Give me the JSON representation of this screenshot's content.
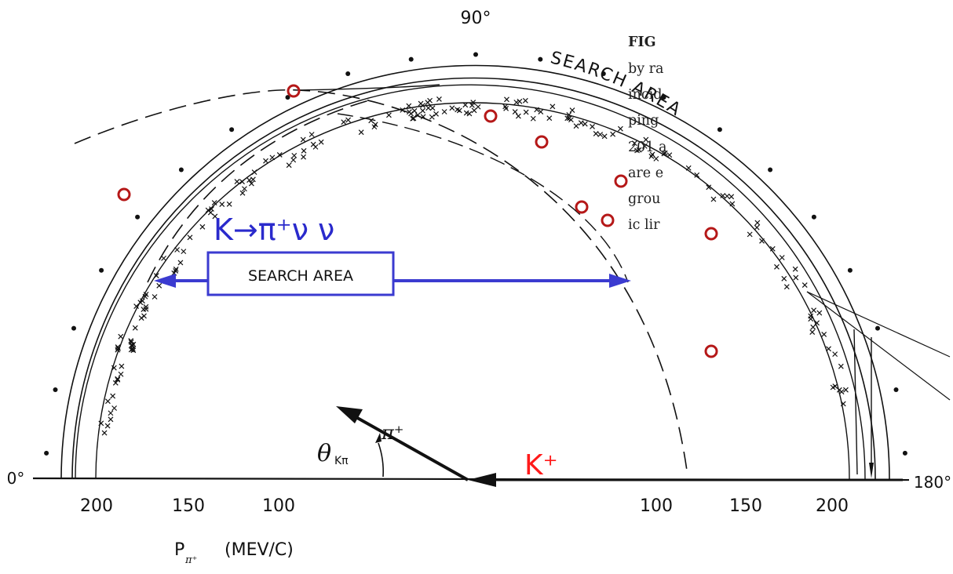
{
  "figure": {
    "angle_top": "90°",
    "angle_left": "0°",
    "angle_right": "180°",
    "search_area_arc": "SEARCH AREA",
    "search_area_box": "SEARCH AREA",
    "decay_label": "K→π⁺ν ν",
    "kaon_label": "K⁺",
    "pion_label": "π⁺",
    "theta_label": "θ",
    "theta_sub": "Kπ",
    "xaxis_ticks_left": [
      "200",
      "150",
      "100"
    ],
    "xaxis_ticks_right": [
      "100",
      "150",
      "200"
    ],
    "xaxis_label_main": "P",
    "xaxis_label_sub": "π⁺",
    "xaxis_label_unit": "(MEV/C)"
  },
  "caption": {
    "lines": [
      "FIG",
      "by ra",
      "incid",
      "ping",
      "201 a",
      "are e",
      "grou",
      "ic lir"
    ]
  },
  "colors": {
    "ink": "#111111",
    "annotation_blue": "#2a2acc",
    "box_blue": "#3b3bd0",
    "circle_red": "#b51818",
    "kaon_red": "#ff1a1a"
  }
}
